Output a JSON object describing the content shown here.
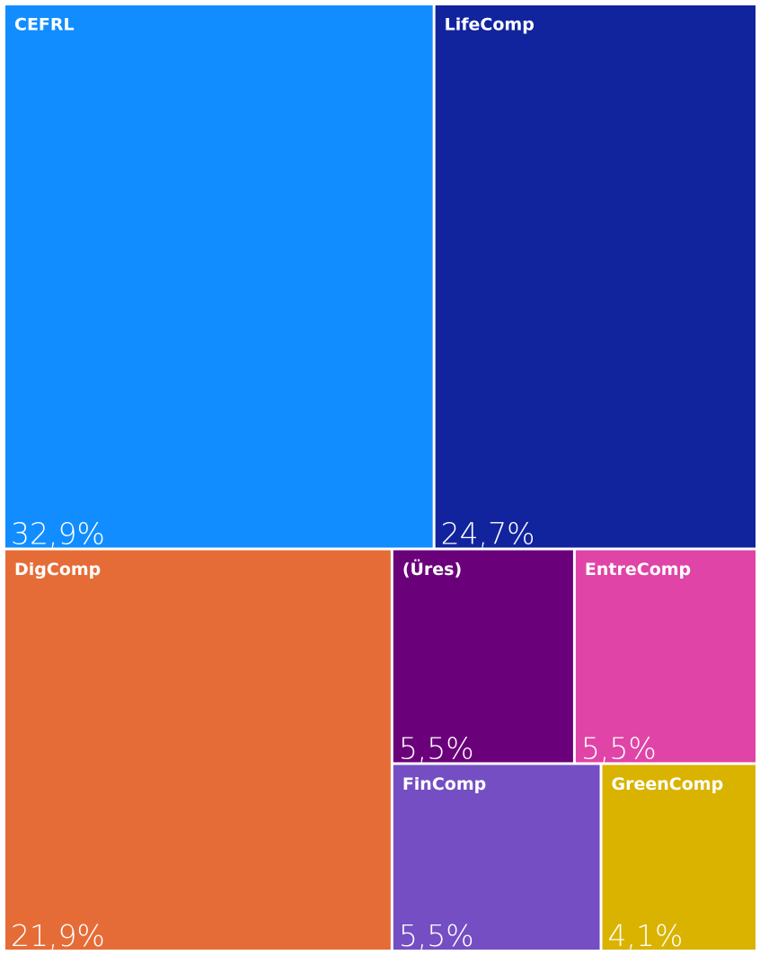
{
  "chart_data": {
    "type": "treemap",
    "categories": [
      "CEFRL",
      "LifeComp",
      "DigComp",
      "(Üres)",
      "EntreComp",
      "FinComp",
      "GreenComp"
    ],
    "values": [
      32.9,
      24.7,
      21.9,
      5.5,
      5.5,
      5.5,
      4.1
    ],
    "value_labels": [
      "32,9%",
      "24,7%",
      "21,9%",
      "5,5%",
      "5,5%",
      "5,5%",
      "4,1%"
    ],
    "colors": [
      "#118dff",
      "#12239e",
      "#e66c37",
      "#6b007b",
      "#e044a7",
      "#744ec2",
      "#d9b300"
    ]
  }
}
